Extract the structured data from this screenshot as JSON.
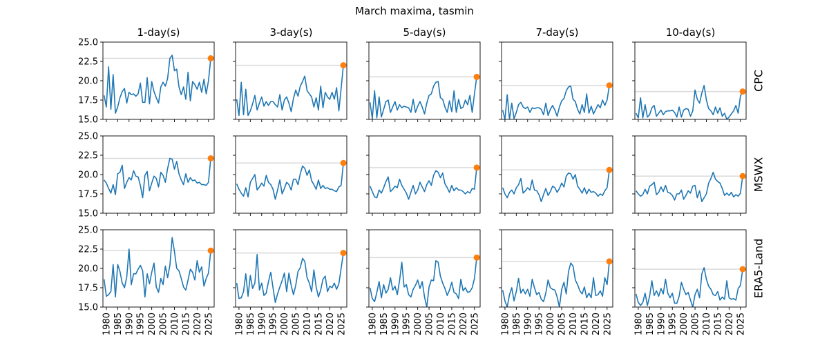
{
  "chart_data": {
    "type": "line",
    "title": "March maxima, tasmin",
    "columns": [
      "1-day(s)",
      "3-day(s)",
      "5-day(s)",
      "7-day(s)",
      "10-day(s)"
    ],
    "rows": [
      "CPC",
      "MSWX",
      "ERA5-Land"
    ],
    "ylim": [
      15.0,
      25.0
    ],
    "yticks": [
      "15.0",
      "17.5",
      "20.0",
      "22.5",
      "25.0"
    ],
    "xlim": [
      1978.5,
      2027.5
    ],
    "xticks": [
      "1980",
      "1985",
      "1990",
      "1995",
      "2000",
      "2005",
      "2010",
      "2015",
      "2020",
      "2025"
    ],
    "grid": false,
    "colors": {
      "line": "#1f77b4",
      "highlight": "#ff7f0e",
      "threshold": "#d9d9d9"
    },
    "x": [
      1979,
      1980,
      1981,
      1982,
      1983,
      1984,
      1985,
      1986,
      1987,
      1988,
      1989,
      1990,
      1991,
      1992,
      1993,
      1994,
      1995,
      1996,
      1997,
      1998,
      1999,
      2000,
      2001,
      2002,
      2003,
      2004,
      2005,
      2006,
      2007,
      2008,
      2009,
      2010,
      2011,
      2012,
      2013,
      2014,
      2015,
      2016,
      2017,
      2018,
      2019,
      2020,
      2021,
      2022,
      2023,
      2024,
      2025
    ],
    "highlight_x": 2026,
    "panels": [
      [
        {
          "values": [
            18.1,
            16.6,
            21.8,
            16.3,
            20.8,
            15.8,
            16.6,
            17.8,
            18.6,
            19.0,
            17.1,
            18.5,
            18.2,
            18.3,
            18.0,
            18.3,
            19.7,
            17.2,
            17.2,
            20.4,
            17.0,
            19.9,
            18.6,
            17.8,
            17.1,
            19.2,
            19.8,
            19.3,
            20.3,
            22.9,
            23.3,
            21.3,
            21.5,
            19.2,
            18.2,
            19.2,
            17.6,
            21.1,
            17.4,
            19.9,
            19.5,
            18.9,
            19.8,
            18.5,
            20.2,
            18.3,
            20.0
          ],
          "highlight": 22.9,
          "threshold": 22.9
        },
        {
          "values": [
            17.6,
            15.5,
            19.8,
            15.6,
            18.9,
            15.5,
            16.1,
            17.0,
            18.1,
            16.2,
            17.1,
            17.9,
            16.7,
            17.3,
            16.8,
            17.3,
            17.3,
            16.9,
            16.6,
            18.2,
            16.2,
            17.5,
            17.9,
            17.1,
            16.0,
            17.7,
            18.8,
            18.0,
            19.3,
            19.9,
            20.6,
            18.7,
            18.3,
            17.9,
            16.6,
            17.8,
            16.2,
            19.3,
            16.5,
            18.5,
            17.9,
            17.6,
            18.5,
            17.6,
            19.1,
            16.1,
            19.0
          ],
          "highlight": 22.0,
          "threshold": 22.0
        },
        {
          "values": [
            17.2,
            15.1,
            18.7,
            15.2,
            17.9,
            15.3,
            16.3,
            17.3,
            17.5,
            15.9,
            16.6,
            17.3,
            16.2,
            16.9,
            16.5,
            16.7,
            16.6,
            16.5,
            15.9,
            17.6,
            15.9,
            16.7,
            17.3,
            16.6,
            15.7,
            17.1,
            18.1,
            18.3,
            19.3,
            19.8,
            19.9,
            17.8,
            17.6,
            16.6,
            15.9,
            17.4,
            16.0,
            18.7,
            15.9,
            17.6,
            16.4,
            16.6,
            17.5,
            16.9,
            18.1,
            15.9,
            18.3
          ],
          "highlight": 20.5,
          "threshold": 20.5
        },
        {
          "values": [
            16.2,
            15.0,
            18.2,
            15.0,
            17.1,
            15.1,
            15.9,
            16.9,
            17.2,
            16.6,
            16.4,
            16.6,
            15.9,
            16.5,
            16.4,
            16.5,
            16.5,
            16.3,
            15.6,
            17.1,
            15.5,
            16.3,
            16.8,
            16.2,
            15.4,
            16.6,
            17.4,
            17.7,
            18.7,
            19.2,
            19.3,
            17.6,
            17.3,
            16.3,
            15.7,
            16.9,
            15.9,
            18.3,
            15.8,
            16.7,
            15.7,
            16.3,
            16.9,
            16.5,
            17.5,
            16.8,
            17.5
          ],
          "highlight": 19.4,
          "threshold": 19.4
        },
        {
          "values": [
            15.8,
            15.2,
            17.8,
            15.2,
            16.9,
            15.3,
            15.6,
            16.5,
            16.8,
            15.4,
            15.8,
            16.2,
            15.6,
            16.0,
            16.1,
            16.1,
            16.2,
            15.9,
            15.3,
            16.6,
            15.3,
            16.2,
            16.4,
            16.3,
            15.4,
            16.1,
            18.8,
            17.6,
            17.1,
            18.4,
            19.4,
            17.5,
            16.4,
            16.1,
            15.6,
            16.6,
            15.8,
            16.5,
            15.4,
            15.8,
            15.0,
            15.3,
            15.7,
            16.1,
            16.8,
            15.8,
            18.0
          ],
          "highlight": 18.6,
          "threshold": 18.6
        }
      ],
      [
        {
          "values": [
            19.3,
            18.9,
            18.2,
            17.6,
            18.7,
            17.4,
            20.1,
            20.3,
            21.2,
            18.2,
            19.0,
            19.6,
            19.3,
            20.5,
            19.8,
            19.7,
            18.6,
            17.0,
            19.9,
            20.4,
            17.9,
            18.9,
            19.8,
            19.5,
            18.4,
            20.3,
            19.9,
            19.0,
            20.8,
            22.1,
            22.0,
            20.7,
            21.7,
            20.1,
            19.3,
            18.7,
            20.1,
            19.0,
            19.6,
            19.2,
            19.3,
            18.9,
            19.0,
            18.7,
            18.7,
            18.6,
            19.0
          ],
          "highlight": 22.1,
          "threshold": 22.1
        },
        {
          "values": [
            18.8,
            18.1,
            17.6,
            17.2,
            18.3,
            17.1,
            19.0,
            19.5,
            20.0,
            18.0,
            18.4,
            18.9,
            18.5,
            19.9,
            19.0,
            18.7,
            18.1,
            16.8,
            18.0,
            19.3,
            17.5,
            18.2,
            19.0,
            18.7,
            18.0,
            19.4,
            19.4,
            18.7,
            20.1,
            21.1,
            20.8,
            19.9,
            20.6,
            19.2,
            18.7,
            18.1,
            19.3,
            18.2,
            18.6,
            18.2,
            18.3,
            18.1,
            18.1,
            17.9,
            17.8,
            18.4,
            18.6
          ],
          "highlight": 21.5,
          "threshold": 21.5
        },
        {
          "values": [
            18.5,
            17.8,
            17.1,
            17.0,
            18.0,
            17.6,
            18.3,
            19.1,
            19.7,
            17.8,
            18.1,
            18.5,
            18.3,
            19.4,
            18.6,
            18.1,
            17.6,
            16.8,
            17.7,
            18.6,
            17.5,
            18.0,
            19.0,
            18.4,
            17.8,
            18.7,
            19.2,
            18.6,
            19.9,
            20.5,
            20.3,
            19.6,
            20.2,
            18.8,
            18.3,
            17.7,
            18.6,
            17.9,
            18.3,
            18.0,
            18.0,
            17.8,
            17.5,
            17.8,
            17.6,
            18.2,
            18.1
          ],
          "highlight": 20.9,
          "threshold": 20.9
        },
        {
          "values": [
            18.3,
            17.5,
            17.0,
            17.7,
            18.0,
            17.5,
            18.3,
            18.7,
            19.5,
            17.6,
            17.9,
            18.3,
            18.0,
            19.3,
            18.0,
            17.9,
            17.4,
            16.5,
            17.4,
            18.2,
            17.3,
            17.8,
            18.5,
            18.3,
            17.7,
            18.2,
            18.9,
            18.4,
            19.8,
            20.2,
            20.1,
            19.4,
            20.0,
            18.5,
            18.1,
            17.6,
            18.3,
            17.5,
            18.1,
            17.7,
            17.8,
            17.6,
            17.2,
            17.5,
            17.3,
            17.9,
            18.3
          ],
          "highlight": 20.6,
          "threshold": 20.6
        },
        {
          "values": [
            17.9,
            17.5,
            17.2,
            17.4,
            18.1,
            17.5,
            18.5,
            18.7,
            19.0,
            17.4,
            17.7,
            18.4,
            17.8,
            18.6,
            17.7,
            17.6,
            17.3,
            16.7,
            17.5,
            17.5,
            18.0,
            16.8,
            17.3,
            17.9,
            17.6,
            18.5,
            18.6,
            17.0,
            17.9,
            16.5,
            17.0,
            17.5,
            18.9,
            19.5,
            20.3,
            19.4,
            19.1,
            18.9,
            18.2,
            17.3,
            17.6,
            17.3,
            17.7,
            17.1,
            17.4,
            17.2,
            17.6
          ],
          "highlight": 19.8,
          "threshold": 19.8
        }
      ],
      [
        {
          "values": [
            18.6,
            16.4,
            16.6,
            17.0,
            20.5,
            16.3,
            20.5,
            19.6,
            18.1,
            17.5,
            18.9,
            22.5,
            17.9,
            19.3,
            19.3,
            19.9,
            20.4,
            19.7,
            16.3,
            19.3,
            18.0,
            19.5,
            20.7,
            17.6,
            16.9,
            18.7,
            17.9,
            20.3,
            18.8,
            20.4,
            24.0,
            22.2,
            20.0,
            19.7,
            18.7,
            17.6,
            17.2,
            18.5,
            19.9,
            19.5,
            18.5,
            21.0,
            19.5,
            20.2,
            17.7,
            18.7,
            19.4
          ],
          "highlight": 22.3,
          "threshold": 22.3
        },
        {
          "values": [
            18.1,
            16.1,
            16.2,
            17.0,
            19.3,
            16.4,
            19.1,
            17.4,
            18.1,
            21.8,
            17.2,
            18.1,
            16.5,
            16.8,
            18.3,
            19.5,
            17.5,
            15.6,
            16.7,
            17.6,
            18.4,
            19.4,
            17.0,
            19.4,
            17.8,
            16.6,
            17.8,
            19.6,
            20.1,
            21.3,
            20.9,
            18.8,
            18.1,
            17.0,
            19.8,
            17.6,
            16.3,
            17.2,
            18.6,
            19.0,
            17.0,
            17.7,
            17.5,
            18.1,
            17.3,
            18.0,
            20.0
          ],
          "highlight": 22.0,
          "threshold": 22.0
        },
        {
          "values": [
            17.5,
            16.1,
            15.7,
            16.9,
            18.3,
            16.2,
            17.9,
            16.8,
            17.3,
            18.8,
            17.2,
            17.7,
            16.6,
            18.4,
            20.8,
            17.6,
            17.9,
            16.6,
            16.3,
            17.3,
            17.8,
            18.5,
            17.4,
            18.3,
            16.3,
            15.0,
            17.6,
            18.5,
            18.4,
            21.0,
            20.8,
            19.0,
            18.1,
            17.4,
            16.5,
            17.2,
            18.2,
            16.9,
            16.7,
            16.1,
            18.6,
            17.1,
            17.5,
            16.9,
            17.0,
            17.5,
            18.7
          ],
          "highlight": 21.4,
          "threshold": 21.4
        },
        {
          "values": [
            17.2,
            15.8,
            15.0,
            16.6,
            17.5,
            15.8,
            17.0,
            18.7,
            16.8,
            17.3,
            16.7,
            17.3,
            16.4,
            18.6,
            17.5,
            16.6,
            16.9,
            16.0,
            15.7,
            16.8,
            18.5,
            17.5,
            17.3,
            17.2,
            16.3,
            15.0,
            17.3,
            18.2,
            16.7,
            19.6,
            20.7,
            20.3,
            18.5,
            17.9,
            17.1,
            16.7,
            17.6,
            16.2,
            16.8,
            16.2,
            18.8,
            16.5,
            16.6,
            17.1,
            16.4,
            18.8,
            17.9
          ],
          "highlight": 20.9,
          "threshold": 20.9
        },
        {
          "values": [
            16.7,
            15.6,
            15.2,
            15.6,
            16.8,
            15.2,
            16.4,
            18.4,
            16.5,
            17.1,
            16.4,
            17.4,
            16.7,
            18.6,
            16.8,
            16.2,
            16.8,
            15.5,
            15.5,
            16.4,
            18.2,
            17.3,
            16.6,
            16.9,
            15.9,
            15.0,
            16.6,
            17.3,
            16.2,
            19.3,
            20.1,
            18.6,
            17.7,
            17.3,
            16.6,
            16.5,
            17.0,
            15.9,
            16.3,
            16.0,
            18.4,
            16.2,
            16.0,
            16.1,
            15.9,
            17.4,
            17.8
          ],
          "highlight": 19.9,
          "threshold": 19.9
        }
      ]
    ]
  }
}
